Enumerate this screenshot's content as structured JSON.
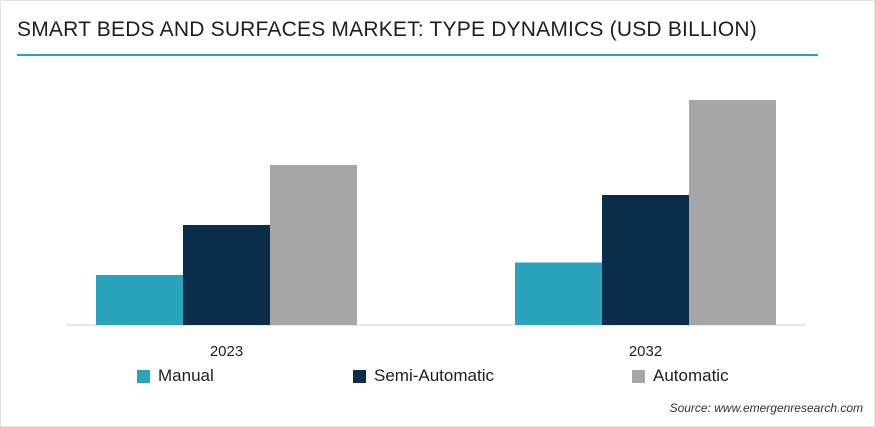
{
  "title": "SMART BEDS AND SURFACES MARKET: TYPE DYNAMICS (USD BILLION)",
  "source": "Source: www.emergenresearch.com",
  "colors": {
    "title_rule": "#2aa3bd",
    "axis": "#d0d0d0"
  },
  "chart_data": {
    "type": "bar",
    "categories": [
      "2023",
      "2032"
    ],
    "series": [
      {
        "name": "Manual",
        "color": "#2aa3bd",
        "values": [
          1.0,
          1.25
        ]
      },
      {
        "name": "Semi-Automatic",
        "color": "#0a2e4a",
        "values": [
          2.0,
          2.6
        ]
      },
      {
        "name": "Automatic",
        "color": "#a6a6a6",
        "values": [
          3.2,
          4.5
        ]
      }
    ],
    "ylim": [
      0,
      4.8
    ],
    "grid": false,
    "legend_position": "bottom",
    "xlabel": "",
    "ylabel": ""
  }
}
